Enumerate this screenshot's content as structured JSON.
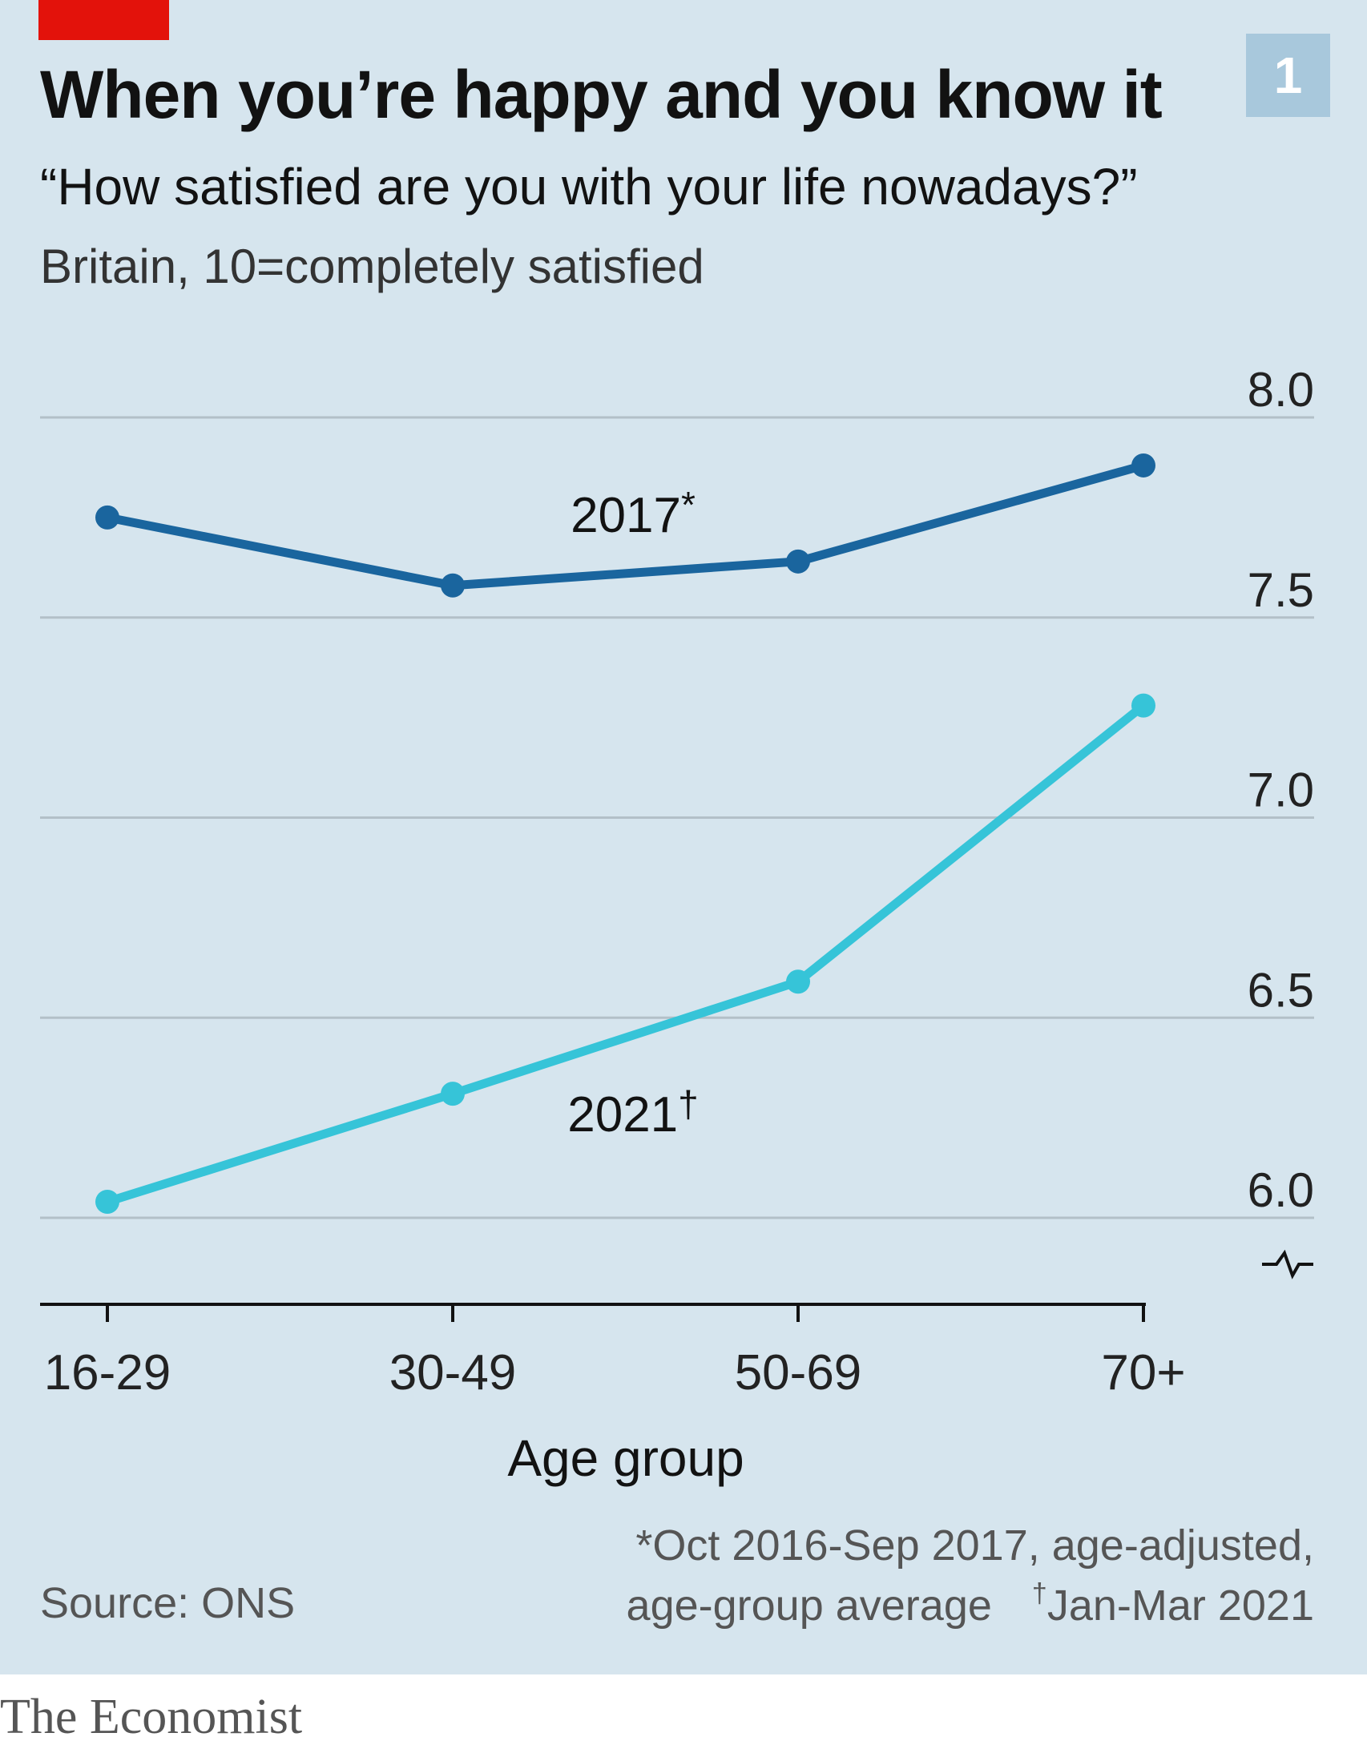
{
  "chart_number": "1",
  "title": "When you’re happy and you know it",
  "subtitle": "“How satisfied are you with your life nowadays?”",
  "subtitle2": "Britain, 10=completely satisfied",
  "chart_data": {
    "type": "line",
    "title": "When you’re happy and you know it",
    "subtitle": "“How satisfied are you with your life nowadays?”",
    "xlabel": "Age group",
    "ylabel": "",
    "categories": [
      "16-29",
      "30-49",
      "50-69",
      "70+"
    ],
    "y_ticks": [
      "8.0",
      "7.5",
      "7.0",
      "6.5",
      "6.0"
    ],
    "ylim": [
      5.8,
      8.0
    ],
    "y_axis_break": true,
    "grid": true,
    "y_axis_side": "right",
    "series": [
      {
        "name": "2017",
        "label_mark": "*",
        "color": "#1a659e",
        "values": [
          7.75,
          7.58,
          7.64,
          7.88
        ]
      },
      {
        "name": "2021",
        "label_mark": "†",
        "color": "#36c4d8",
        "values": [
          6.04,
          6.31,
          6.59,
          7.28
        ]
      }
    ]
  },
  "footnote": {
    "line1": "*Oct 2016-Sep 2017, age-adjusted,",
    "line2a": "age-group average",
    "dagger": "†",
    "line2b": "Jan-Mar 2021"
  },
  "source": "Source: ONS",
  "brand": "The Economist",
  "colors": {
    "background": "#d6e5ee",
    "accent_red": "#e3120b",
    "series_2017": "#1a659e",
    "series_2021": "#36c4d8",
    "grid": "#b3c0c8"
  }
}
